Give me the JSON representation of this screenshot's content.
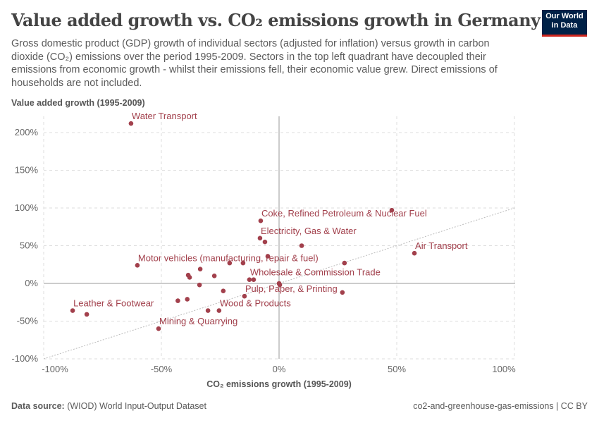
{
  "header": {
    "title": "Value added growth vs. CO₂ emissions growth in Germany",
    "subtitle": "Gross domestic product (GDP) growth of individual sectors (adjusted for inflation) versus growth in carbon dioxide (CO₂) emissions over the period 1995-2009. Sectors in the top left quadrant have decoupled their emissions from economic growth - whilst their emissions fell, their economic value grew. Direct emissions of households are not included.",
    "logo": "Our World in Data"
  },
  "footer": {
    "source_label": "Data source:",
    "source": "(WIOD) World Input-Output Dataset",
    "right": "co2-and-greenhouse-gas-emissions | CC BY"
  },
  "chart_data": {
    "type": "scatter",
    "xlabel": "CO₂ emissions growth (1995-2009)",
    "ylabel": "Value added growth (1995-2009)",
    "xlim": [
      -105,
      105
    ],
    "ylim": [
      -100,
      220
    ],
    "xticks": [
      -100,
      -50,
      0,
      50,
      100
    ],
    "xtick_labels": [
      "-100%",
      "-50%",
      "0%",
      "50%",
      "100%"
    ],
    "yticks": [
      -100,
      -50,
      0,
      50,
      100,
      150,
      200
    ],
    "ytick_labels": [
      "-100%",
      "-50%",
      "0%",
      "50%",
      "100%",
      "150%",
      "200%"
    ],
    "grid": true,
    "reference_line": "y = x",
    "color": "#a2404c",
    "points": [
      {
        "x": -62.9,
        "y": 212,
        "label": "Water Transport"
      },
      {
        "x": -7.8,
        "y": 83,
        "label": "Coke, Refined Petroleum & Nuclear Fuel"
      },
      {
        "x": 47.9,
        "y": 97,
        "label": ""
      },
      {
        "x": -8.1,
        "y": 60,
        "label": "Electricity, Gas & Water"
      },
      {
        "x": -6,
        "y": 55,
        "label": ""
      },
      {
        "x": 9.6,
        "y": 50,
        "label": ""
      },
      {
        "x": 57.5,
        "y": 40,
        "label": "Air Transport"
      },
      {
        "x": 27.8,
        "y": 27,
        "label": ""
      },
      {
        "x": -4.8,
        "y": 36,
        "label": ""
      },
      {
        "x": -21,
        "y": 27,
        "label": ""
      },
      {
        "x": -15.3,
        "y": 27,
        "label": ""
      },
      {
        "x": -60.2,
        "y": 24,
        "label": "Motor vehicles (manufacturing, repair & fuel)"
      },
      {
        "x": -33.5,
        "y": 19,
        "label": ""
      },
      {
        "x": -38.6,
        "y": 11,
        "label": ""
      },
      {
        "x": -38,
        "y": 8,
        "label": ""
      },
      {
        "x": -27.5,
        "y": 10,
        "label": ""
      },
      {
        "x": -12.6,
        "y": 5,
        "label": "Wholesale & Commission Trade"
      },
      {
        "x": -10.8,
        "y": 5,
        "label": ""
      },
      {
        "x": 0,
        "y": 0,
        "label": ""
      },
      {
        "x": 0.3,
        "y": -2,
        "label": ""
      },
      {
        "x": -33.8,
        "y": -2,
        "label": ""
      },
      {
        "x": -23.7,
        "y": -10,
        "label": ""
      },
      {
        "x": -14.7,
        "y": -17,
        "label": "Pulp, Paper, & Printing"
      },
      {
        "x": 26.9,
        "y": -12,
        "label": ""
      },
      {
        "x": -43,
        "y": -23,
        "label": ""
      },
      {
        "x": -39,
        "y": -21,
        "label": ""
      },
      {
        "x": -30.2,
        "y": -36,
        "label": ""
      },
      {
        "x": -25.5,
        "y": -36,
        "label": "Wood & Products"
      },
      {
        "x": -87.7,
        "y": -36,
        "label": "Leather & Footwear"
      },
      {
        "x": -81.7,
        "y": -41,
        "label": ""
      },
      {
        "x": -51.2,
        "y": -60,
        "label": "Mining & Quarrying"
      }
    ]
  }
}
